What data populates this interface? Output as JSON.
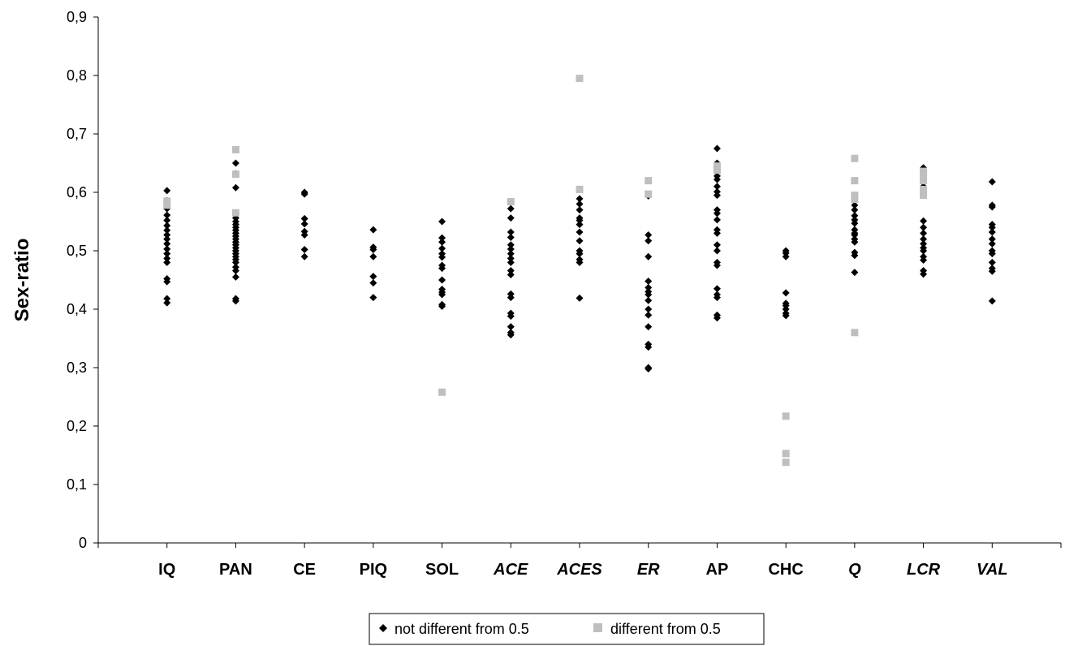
{
  "chart_data": {
    "type": "scatter",
    "ylabel": "Sex-ratio",
    "xlabel": "",
    "ylim": [
      0,
      0.9
    ],
    "y_ticks": [
      "0",
      "0,1",
      "0,2",
      "0,3",
      "0,4",
      "0,5",
      "0,6",
      "0,7",
      "0,8",
      "0,9"
    ],
    "grid": false,
    "legend_position": "bottom",
    "categories": [
      "IQ",
      "PAN",
      "CE",
      "PIQ",
      "SOL",
      "ACE",
      "ACES",
      "ER",
      "AP",
      "CHC",
      "Q",
      "LCR",
      "VAL"
    ],
    "italic_categories": [
      "ACE",
      "ACES",
      "ER",
      "Q",
      "LCR",
      "VAL"
    ],
    "series": [
      {
        "name": "not different from 0.5",
        "color": "#000000",
        "marker": "diamond",
        "values": {
          "IQ": [
            0.603,
            0.586,
            0.572,
            0.561,
            0.552,
            0.543,
            0.535,
            0.527,
            0.52,
            0.512,
            0.503,
            0.495,
            0.487,
            0.48,
            0.452,
            0.447,
            0.418,
            0.411
          ],
          "PAN": [
            0.65,
            0.632,
            0.608,
            0.556,
            0.55,
            0.545,
            0.54,
            0.535,
            0.53,
            0.525,
            0.52,
            0.515,
            0.51,
            0.505,
            0.5,
            0.495,
            0.49,
            0.485,
            0.48,
            0.472,
            0.466,
            0.455,
            0.418,
            0.414
          ],
          "CE": [
            0.6,
            0.597,
            0.555,
            0.546,
            0.533,
            0.527,
            0.502,
            0.49
          ],
          "PIQ": [
            0.536,
            0.506,
            0.502,
            0.49,
            0.456,
            0.445,
            0.42
          ],
          "SOL": [
            0.55,
            0.522,
            0.515,
            0.504,
            0.495,
            0.489,
            0.475,
            0.47,
            0.45,
            0.434,
            0.429,
            0.425,
            0.408,
            0.405
          ],
          "ACE": [
            0.572,
            0.556,
            0.532,
            0.523,
            0.51,
            0.503,
            0.495,
            0.487,
            0.48,
            0.466,
            0.459,
            0.426,
            0.42,
            0.393,
            0.388,
            0.37,
            0.36,
            0.356
          ],
          "ACES": [
            0.589,
            0.58,
            0.57,
            0.556,
            0.552,
            0.545,
            0.532,
            0.517,
            0.5,
            0.495,
            0.485,
            0.48,
            0.419
          ],
          "ER": [
            0.594,
            0.527,
            0.517,
            0.49,
            0.448,
            0.437,
            0.43,
            0.425,
            0.415,
            0.4,
            0.39,
            0.37,
            0.34,
            0.335,
            0.3,
            0.298
          ],
          "AP": [
            0.675,
            0.65,
            0.628,
            0.622,
            0.61,
            0.601,
            0.595,
            0.57,
            0.564,
            0.553,
            0.536,
            0.53,
            0.51,
            0.5,
            0.48,
            0.475,
            0.435,
            0.425,
            0.42,
            0.39,
            0.385
          ],
          "CHC": [
            0.5,
            0.496,
            0.49,
            0.428,
            0.41,
            0.406,
            0.4,
            0.393,
            0.389
          ],
          "Q": [
            0.578,
            0.57,
            0.56,
            0.553,
            0.547,
            0.536,
            0.53,
            0.527,
            0.52,
            0.515,
            0.497,
            0.492,
            0.463
          ],
          "LCR": [
            0.642,
            0.625,
            0.61,
            0.598,
            0.551,
            0.54,
            0.53,
            0.52,
            0.512,
            0.505,
            0.5,
            0.49,
            0.484,
            0.466,
            0.46
          ],
          "VAL": [
            0.618,
            0.578,
            0.575,
            0.545,
            0.54,
            0.532,
            0.52,
            0.512,
            0.5,
            0.495,
            0.48,
            0.47,
            0.465,
            0.414
          ]
        }
      },
      {
        "name": "different from 0.5",
        "color": "#bfbfbf",
        "marker": "square",
        "values": {
          "IQ": [
            0.585,
            0.578
          ],
          "PAN": [
            0.673,
            0.631,
            0.565
          ],
          "SOL": [
            0.258
          ],
          "ACE": [
            0.584
          ],
          "ACES": [
            0.795,
            0.605
          ],
          "ER": [
            0.62,
            0.597
          ],
          "AP": [
            0.645,
            0.638
          ],
          "CHC": [
            0.217,
            0.153,
            0.138
          ],
          "Q": [
            0.658,
            0.62,
            0.595,
            0.588,
            0.36
          ],
          "LCR": [
            0.636,
            0.63,
            0.62,
            0.605,
            0.595
          ]
        }
      }
    ]
  }
}
